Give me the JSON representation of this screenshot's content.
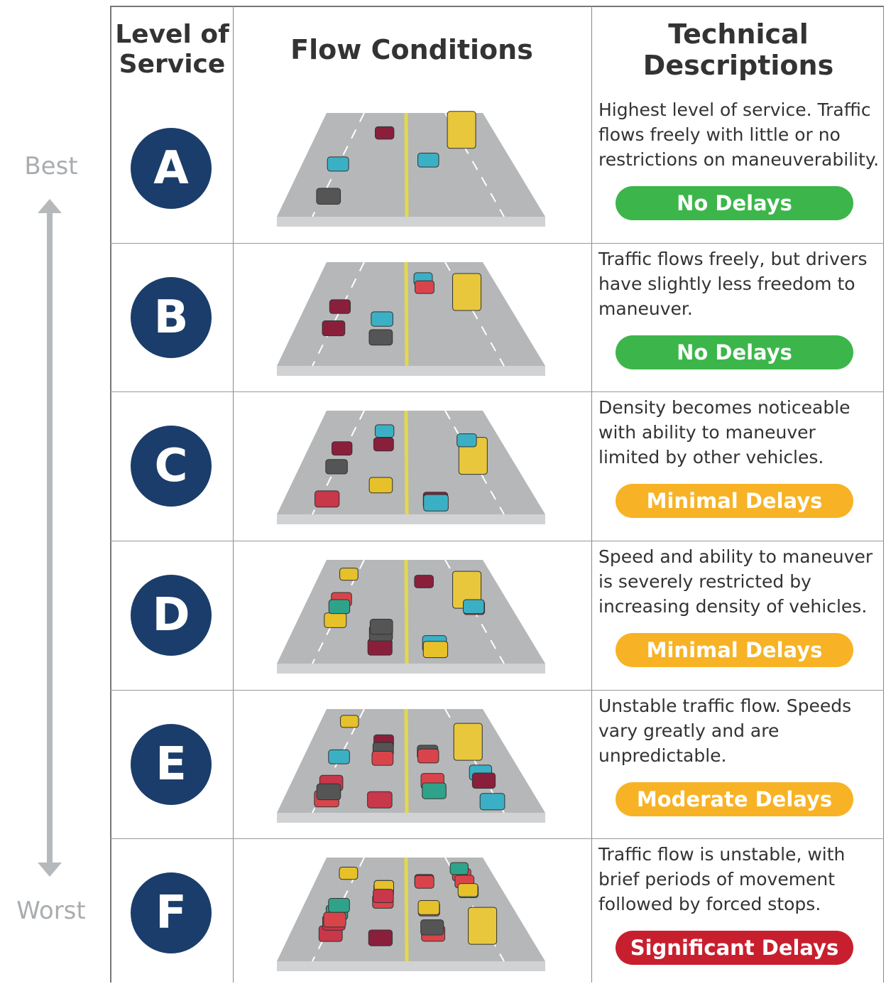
{
  "scale": {
    "top_label": "Best",
    "bottom_label": "Worst"
  },
  "header": {
    "level": "Level of Service",
    "flow": "Flow Conditions",
    "description": "Technical Descriptions"
  },
  "rows": [
    {
      "grade": "A",
      "description": "Highest level of service. Traffic flows freely with little or no restrictions on maneuverability.",
      "delay": "No Delays"
    },
    {
      "grade": "B",
      "description": "Traffic flows freely, but drivers have slightly less freedom to maneuver.",
      "delay": "No Delays"
    },
    {
      "grade": "C",
      "description": "Density becomes noticeable with ability to maneuver limited by other vehicles.",
      "delay": "Minimal Delays"
    },
    {
      "grade": "D",
      "description": "Speed and ability to maneuver is severely restricted by increasing density of vehicles.",
      "delay": "Minimal Delays"
    },
    {
      "grade": "E",
      "description": "Unstable traffic flow. Speeds vary greatly and are unpredictable.",
      "delay": "Moderate Delays"
    },
    {
      "grade": "F",
      "description": "Traffic flow is unstable, with brief periods of movement followed by forced stops.",
      "delay": "Significant Delays"
    }
  ]
}
